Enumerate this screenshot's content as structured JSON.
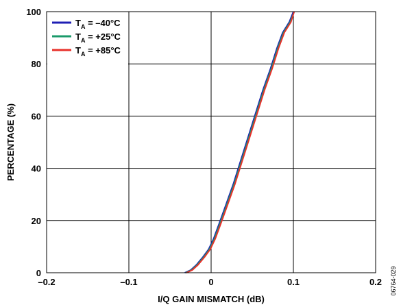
{
  "chart_data": {
    "type": "line",
    "title": "",
    "xlabel": "I/Q GAIN MISMATCH (dB)",
    "ylabel": "PERCENTAGE (%)",
    "xlim": [
      -0.2,
      0.2
    ],
    "ylim": [
      0,
      100
    ],
    "x_ticks": [
      "–0.2",
      "–0.1",
      "0",
      "0.1",
      "0.2"
    ],
    "y_ticks": [
      "0",
      "20",
      "40",
      "60",
      "80",
      "100"
    ],
    "grid": true,
    "legend_position": "top-left",
    "series": [
      {
        "name_main": "T",
        "name_sub": "A",
        "name_rest": " = –40°C",
        "color": "#1f1fb4",
        "x": [
          -0.032,
          -0.025,
          -0.018,
          -0.01,
          -0.003,
          0.003,
          0.01,
          0.018,
          0.027,
          0.036,
          0.045,
          0.054,
          0.063,
          0.072,
          0.08,
          0.087,
          0.095,
          0.1
        ],
        "y": [
          0,
          1,
          3,
          6,
          9,
          13,
          19,
          26,
          34,
          43,
          52,
          61,
          70,
          78,
          86,
          92,
          96,
          100
        ]
      },
      {
        "name_main": "T",
        "name_sub": "A",
        "name_rest": " = +25°C",
        "color": "#1a9a6a",
        "x": [
          -0.031,
          -0.024,
          -0.017,
          -0.009,
          -0.002,
          0.004,
          0.011,
          0.019,
          0.028,
          0.037,
          0.046,
          0.055,
          0.064,
          0.073,
          0.081,
          0.088,
          0.096,
          0.101
        ],
        "y": [
          0,
          1,
          3,
          6,
          9,
          13,
          19,
          26,
          34,
          43,
          52,
          61,
          70,
          78,
          86,
          92,
          96,
          100
        ]
      },
      {
        "name_main": "T",
        "name_sub": "A",
        "name_rest": " = +85°C",
        "color": "#e8302a",
        "x": [
          -0.03,
          -0.023,
          -0.016,
          -0.008,
          -0.001,
          0.005,
          0.012,
          0.02,
          0.029,
          0.038,
          0.047,
          0.056,
          0.065,
          0.074,
          0.082,
          0.089,
          0.097,
          0.101
        ],
        "y": [
          0,
          1,
          3,
          6,
          9,
          13,
          19,
          26,
          34,
          43,
          52,
          61,
          70,
          78,
          86,
          92,
          96,
          100
        ]
      }
    ],
    "figure_id": "06764-029"
  }
}
